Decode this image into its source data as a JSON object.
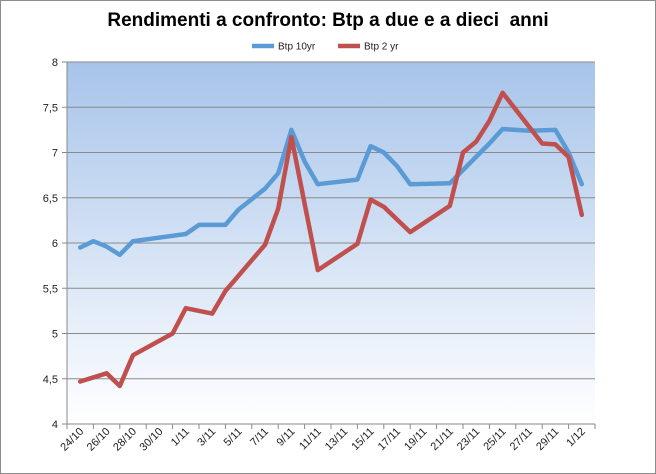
{
  "chart_data": {
    "type": "line",
    "title": "Rendimenti a confronto: Btp a due e a dieci  anni",
    "xlabel": "",
    "ylabel": "",
    "ylim": [
      4,
      8
    ],
    "yticks": [
      "4",
      "4,5",
      "5",
      "5,5",
      "6",
      "6,5",
      "7",
      "7,5",
      "8"
    ],
    "categories": [
      "24/10",
      "26/10",
      "28/10",
      "30/10",
      "1/11",
      "3/11",
      "5/11",
      "7/11",
      "9/11",
      "11/11",
      "13/11",
      "15/11",
      "17/11",
      "19/11",
      "21/11",
      "23/11",
      "25/11",
      "27/11",
      "29/11",
      "1/12"
    ],
    "grid": true,
    "legend_position": "top",
    "series": [
      {
        "name": "Btp 10yr",
        "color": "#5b9bd5",
        "points": [
          [
            0,
            5.95
          ],
          [
            0.5,
            6.02
          ],
          [
            1,
            5.96
          ],
          [
            1.5,
            5.87
          ],
          [
            2,
            6.02
          ],
          [
            4,
            6.1
          ],
          [
            4.5,
            6.2
          ],
          [
            5.5,
            6.2
          ],
          [
            6,
            6.37
          ],
          [
            7,
            6.6
          ],
          [
            7.5,
            6.77
          ],
          [
            8,
            7.25
          ],
          [
            8.5,
            6.9
          ],
          [
            9,
            6.65
          ],
          [
            10.5,
            6.7
          ],
          [
            11,
            7.07
          ],
          [
            11.5,
            7.0
          ],
          [
            12,
            6.85
          ],
          [
            12.5,
            6.65
          ],
          [
            14,
            6.66
          ],
          [
            15.5,
            7.1
          ],
          [
            16,
            7.26
          ],
          [
            17,
            7.24
          ],
          [
            18,
            7.25
          ],
          [
            18.5,
            7.0
          ],
          [
            19,
            6.65
          ]
        ]
      },
      {
        "name": "Btp 2 yr",
        "color": "#c0504d",
        "points": [
          [
            0,
            4.47
          ],
          [
            1,
            4.56
          ],
          [
            1.5,
            4.42
          ],
          [
            2,
            4.76
          ],
          [
            3.5,
            5.0
          ],
          [
            4,
            5.28
          ],
          [
            5,
            5.22
          ],
          [
            5.5,
            5.47
          ],
          [
            7,
            5.98
          ],
          [
            7.5,
            6.38
          ],
          [
            8,
            7.17
          ],
          [
            9,
            5.7
          ],
          [
            10.5,
            5.99
          ],
          [
            11,
            6.48
          ],
          [
            11.5,
            6.4
          ],
          [
            12.5,
            6.12
          ],
          [
            14,
            6.41
          ],
          [
            14.5,
            7.0
          ],
          [
            15,
            7.12
          ],
          [
            15.5,
            7.35
          ],
          [
            16,
            7.66
          ],
          [
            17.5,
            7.1
          ],
          [
            18,
            7.09
          ],
          [
            18.5,
            6.95
          ],
          [
            19,
            6.31
          ]
        ]
      }
    ]
  }
}
